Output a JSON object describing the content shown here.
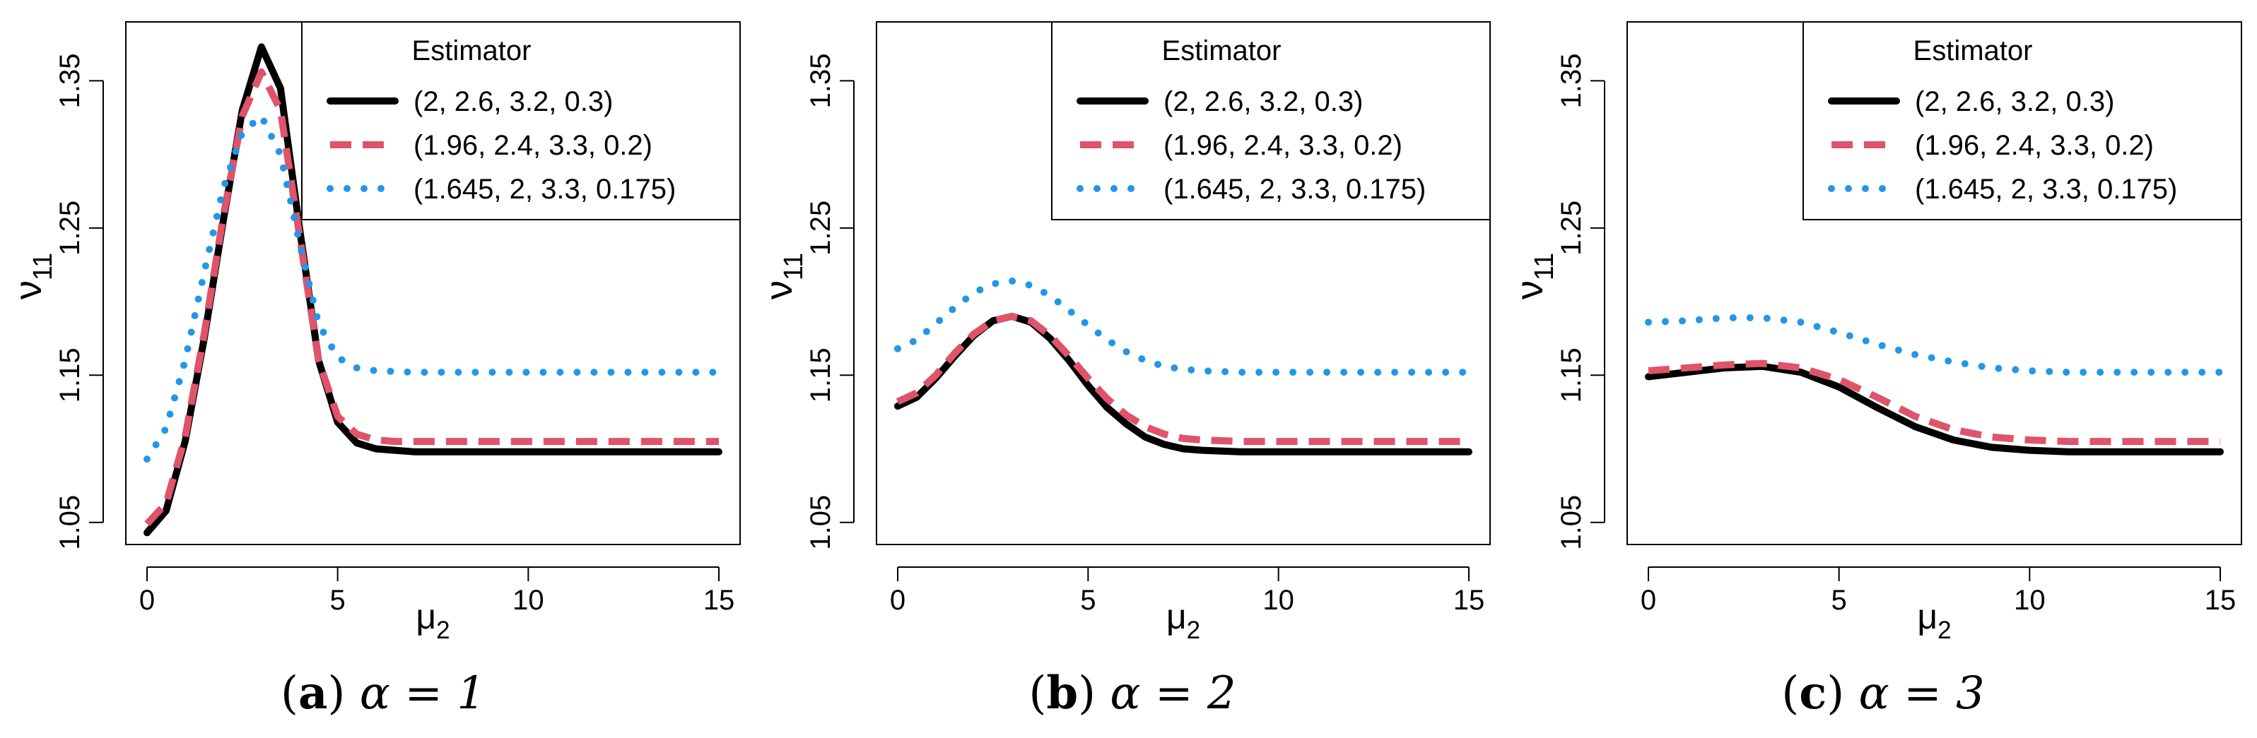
{
  "figure": {
    "colors": {
      "background": "#ffffff",
      "axis": "#000000",
      "series": [
        "#000000",
        "#df536b",
        "#2297e6"
      ]
    }
  },
  "chart_data": [
    {
      "type": "line",
      "panel": "a",
      "caption": {
        "letter": "(a)",
        "text": "α = 1"
      },
      "xlabel": "μ2",
      "ylabel": "ν11",
      "xlim": [
        0,
        15
      ],
      "ylim": [
        1.035,
        1.39
      ],
      "xticks": [
        "0",
        "5",
        "10",
        "15"
      ],
      "yticks": [
        "1.05",
        "1.15",
        "1.25",
        "1.35"
      ],
      "legend": {
        "title": "Estimator",
        "position": "top-right",
        "entries": [
          "(2, 2.6, 3.2, 0.3)",
          "(1.96, 2.4, 3.3, 0.2)",
          "(1.645, 2, 3.3, 0.175)"
        ]
      },
      "series": [
        {
          "name": "(2, 2.6, 3.2, 0.3)",
          "style": "solid",
          "color": "#000000",
          "x": [
            0,
            0.5,
            1,
            1.5,
            2,
            2.5,
            3,
            3.5,
            4,
            4.5,
            5,
            5.5,
            6,
            6.5,
            7,
            8,
            10,
            12,
            15
          ],
          "y": [
            1.043,
            1.058,
            1.105,
            1.175,
            1.255,
            1.33,
            1.373,
            1.345,
            1.25,
            1.16,
            1.118,
            1.104,
            1.1,
            1.099,
            1.098,
            1.098,
            1.098,
            1.098,
            1.098
          ]
        },
        {
          "name": "(1.96, 2.4, 3.3, 0.2)",
          "style": "dashed",
          "color": "#df536b",
          "x": [
            0,
            0.5,
            1,
            1.5,
            2,
            2.5,
            3,
            3.5,
            4,
            4.5,
            5,
            5.5,
            6,
            6.5,
            7,
            8,
            10,
            12,
            15
          ],
          "y": [
            1.049,
            1.063,
            1.108,
            1.178,
            1.258,
            1.326,
            1.356,
            1.33,
            1.245,
            1.16,
            1.122,
            1.11,
            1.106,
            1.105,
            1.105,
            1.105,
            1.105,
            1.105,
            1.105
          ]
        },
        {
          "name": "(1.645, 2, 3.3, 0.175)",
          "style": "dotted",
          "color": "#2297e6",
          "x": [
            0,
            0.5,
            1,
            1.5,
            2,
            2.5,
            3,
            3.5,
            4,
            4.5,
            5,
            5.5,
            6,
            7,
            8,
            10,
            12,
            15
          ],
          "y": [
            1.093,
            1.114,
            1.16,
            1.22,
            1.277,
            1.315,
            1.326,
            1.3,
            1.24,
            1.185,
            1.162,
            1.155,
            1.153,
            1.152,
            1.152,
            1.152,
            1.152,
            1.152
          ]
        }
      ]
    },
    {
      "type": "line",
      "panel": "b",
      "caption": {
        "letter": "(b)",
        "text": "α = 2"
      },
      "xlabel": "μ2",
      "ylabel": "ν11",
      "xlim": [
        0,
        15
      ],
      "ylim": [
        1.035,
        1.39
      ],
      "xticks": [
        "0",
        "5",
        "10",
        "15"
      ],
      "yticks": [
        "1.05",
        "1.15",
        "1.25",
        "1.35"
      ],
      "legend": {
        "title": "Estimator",
        "position": "top-right",
        "entries": [
          "(2, 2.6, 3.2, 0.3)",
          "(1.96, 2.4, 3.3, 0.2)",
          "(1.645, 2, 3.3, 0.175)"
        ]
      },
      "series": [
        {
          "name": "(2, 2.6, 3.2, 0.3)",
          "style": "solid",
          "color": "#000000",
          "x": [
            0,
            0.5,
            1,
            1.5,
            2,
            2.5,
            3,
            3.5,
            4,
            4.5,
            5,
            5.5,
            6,
            6.5,
            7,
            7.5,
            8,
            9,
            10,
            12,
            15
          ],
          "y": [
            1.129,
            1.135,
            1.148,
            1.163,
            1.177,
            1.187,
            1.19,
            1.186,
            1.175,
            1.16,
            1.143,
            1.128,
            1.117,
            1.108,
            1.103,
            1.1,
            1.099,
            1.098,
            1.098,
            1.098,
            1.098
          ]
        },
        {
          "name": "(1.96, 2.4, 3.3, 0.2)",
          "style": "dashed",
          "color": "#df536b",
          "x": [
            0,
            0.5,
            1,
            1.5,
            2,
            2.5,
            3,
            3.5,
            4,
            4.5,
            5,
            5.5,
            6,
            6.5,
            7,
            7.5,
            8,
            9,
            10,
            12,
            15
          ],
          "y": [
            1.132,
            1.138,
            1.15,
            1.165,
            1.178,
            1.187,
            1.19,
            1.187,
            1.177,
            1.163,
            1.148,
            1.134,
            1.123,
            1.115,
            1.11,
            1.107,
            1.106,
            1.105,
            1.105,
            1.105,
            1.105
          ]
        },
        {
          "name": "(1.645, 2, 3.3, 0.175)",
          "style": "dotted",
          "color": "#2297e6",
          "x": [
            0,
            0.5,
            1,
            1.5,
            2,
            2.5,
            3,
            3.5,
            4,
            4.5,
            5,
            5.5,
            6,
            6.5,
            7,
            7.5,
            8,
            9,
            10,
            12,
            15
          ],
          "y": [
            1.168,
            1.174,
            1.185,
            1.196,
            1.206,
            1.212,
            1.214,
            1.211,
            1.204,
            1.194,
            1.184,
            1.174,
            1.166,
            1.16,
            1.156,
            1.154,
            1.153,
            1.152,
            1.152,
            1.152,
            1.152
          ]
        }
      ]
    },
    {
      "type": "line",
      "panel": "c",
      "caption": {
        "letter": "(c)",
        "text": "α = 3"
      },
      "xlabel": "μ2",
      "ylabel": "ν11",
      "xlim": [
        0,
        15
      ],
      "ylim": [
        1.035,
        1.39
      ],
      "xticks": [
        "0",
        "5",
        "10",
        "15"
      ],
      "yticks": [
        "1.05",
        "1.15",
        "1.25",
        "1.35"
      ],
      "legend": {
        "title": "Estimator",
        "position": "top-right",
        "entries": [
          "(2, 2.6, 3.2, 0.3)",
          "(1.96, 2.4, 3.3, 0.2)",
          "(1.645, 2, 3.3, 0.175)"
        ]
      },
      "series": [
        {
          "name": "(2, 2.6, 3.2, 0.3)",
          "style": "solid",
          "color": "#000000",
          "x": [
            0,
            1,
            2,
            3,
            4,
            5,
            6,
            7,
            8,
            9,
            10,
            11,
            12,
            13,
            15
          ],
          "y": [
            1.149,
            1.152,
            1.155,
            1.156,
            1.152,
            1.142,
            1.128,
            1.115,
            1.106,
            1.101,
            1.099,
            1.098,
            1.098,
            1.098,
            1.098
          ]
        },
        {
          "name": "(1.96, 2.4, 3.3, 0.2)",
          "style": "dashed",
          "color": "#df536b",
          "x": [
            0,
            1,
            2,
            3,
            4,
            5,
            6,
            7,
            8,
            9,
            10,
            11,
            12,
            13,
            15
          ],
          "y": [
            1.153,
            1.155,
            1.157,
            1.158,
            1.155,
            1.147,
            1.135,
            1.122,
            1.113,
            1.108,
            1.106,
            1.105,
            1.105,
            1.105,
            1.105
          ]
        },
        {
          "name": "(1.645, 2, 3.3, 0.175)",
          "style": "dotted",
          "color": "#2297e6",
          "x": [
            0,
            1,
            2,
            3,
            4,
            5,
            6,
            7,
            8,
            9,
            10,
            11,
            12,
            13,
            15
          ],
          "y": [
            1.186,
            1.187,
            1.189,
            1.189,
            1.186,
            1.179,
            1.171,
            1.164,
            1.159,
            1.155,
            1.153,
            1.152,
            1.152,
            1.152,
            1.152
          ]
        }
      ]
    }
  ]
}
